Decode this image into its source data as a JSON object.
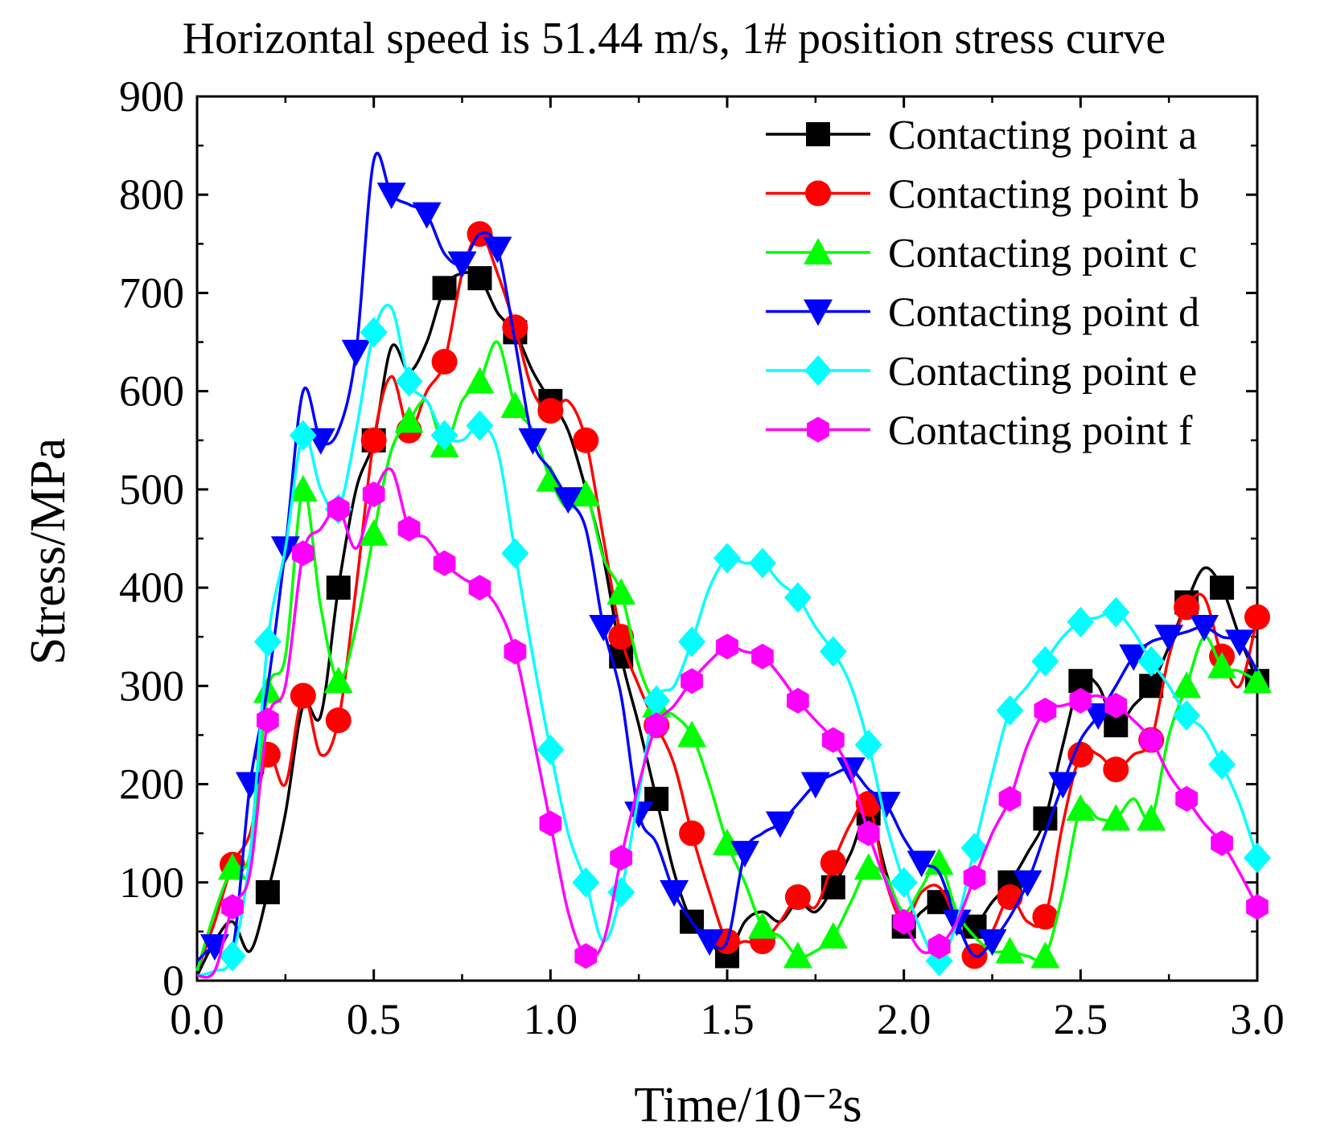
{
  "chart_data": {
    "type": "line",
    "title": "Horizontal speed is 51.44 m/s, 1# position stress curve",
    "xlabel": "Time/10⁻²s",
    "ylabel": "Stress/MPa",
    "xlim": [
      0,
      3.0
    ],
    "ylim": [
      0,
      900
    ],
    "xticks": [
      "0.0",
      "0.5",
      "1.0",
      "1.5",
      "2.0",
      "2.5",
      "3.0"
    ],
    "yticks": [
      "0",
      "100",
      "200",
      "300",
      "400",
      "500",
      "600",
      "700",
      "800",
      "900"
    ],
    "legend_position": "top-right",
    "series": [
      {
        "name": "Contacting point a",
        "color": "#000000",
        "marker": "square",
        "x": [
          0,
          0.05,
          0.1,
          0.15,
          0.2,
          0.25,
          0.3,
          0.35,
          0.4,
          0.45,
          0.5,
          0.55,
          0.6,
          0.65,
          0.7,
          0.75,
          0.8,
          0.85,
          0.9,
          0.95,
          1.0,
          1.05,
          1.1,
          1.15,
          1.2,
          1.25,
          1.3,
          1.35,
          1.4,
          1.45,
          1.5,
          1.55,
          1.6,
          1.65,
          1.7,
          1.75,
          1.8,
          1.85,
          1.9,
          1.95,
          2.0,
          2.05,
          2.1,
          2.15,
          2.2,
          2.25,
          2.3,
          2.35,
          2.4,
          2.45,
          2.5,
          2.55,
          2.6,
          2.65,
          2.7,
          2.75,
          2.8,
          2.85,
          2.9,
          2.95,
          3.0
        ],
        "y": [
          5,
          40,
          60,
          30,
          90,
          170,
          280,
          270,
          400,
          500,
          550,
          645,
          620,
          650,
          705,
          720,
          715,
          680,
          660,
          620,
          590,
          560,
          500,
          430,
          330,
          260,
          185,
          110,
          60,
          40,
          25,
          60,
          70,
          60,
          80,
          70,
          95,
          130,
          170,
          110,
          55,
          70,
          80,
          50,
          55,
          80,
          100,
          130,
          165,
          240,
          305,
          300,
          260,
          280,
          300,
          340,
          385,
          420,
          400,
          350,
          305
        ],
        "markers_x": [
          0.2,
          0.4,
          0.5,
          0.7,
          0.8,
          0.9,
          1.0,
          1.2,
          1.3,
          1.4,
          1.5,
          1.8,
          1.9,
          2.0,
          2.1,
          2.2,
          2.3,
          2.4,
          2.5,
          2.6,
          2.7,
          2.8,
          2.9,
          3.0
        ]
      },
      {
        "name": "Contacting point b",
        "color": "#ff0000",
        "marker": "circle",
        "x": [
          0,
          0.05,
          0.1,
          0.15,
          0.2,
          0.25,
          0.3,
          0.35,
          0.4,
          0.45,
          0.5,
          0.55,
          0.6,
          0.65,
          0.7,
          0.75,
          0.8,
          0.85,
          0.9,
          0.95,
          1.0,
          1.05,
          1.1,
          1.15,
          1.2,
          1.25,
          1.3,
          1.35,
          1.4,
          1.45,
          1.5,
          1.55,
          1.6,
          1.65,
          1.7,
          1.75,
          1.8,
          1.85,
          1.9,
          1.95,
          2.0,
          2.05,
          2.1,
          2.15,
          2.2,
          2.25,
          2.3,
          2.35,
          2.4,
          2.45,
          2.5,
          2.55,
          2.6,
          2.65,
          2.7,
          2.75,
          2.8,
          2.85,
          2.9,
          2.95,
          3.0
        ],
        "y": [
          10,
          60,
          118,
          150,
          230,
          200,
          290,
          230,
          265,
          400,
          550,
          615,
          560,
          600,
          630,
          720,
          760,
          720,
          665,
          600,
          580,
          590,
          550,
          450,
          350,
          300,
          260,
          220,
          150,
          90,
          40,
          40,
          40,
          60,
          85,
          75,
          120,
          160,
          180,
          100,
          60,
          90,
          95,
          60,
          25,
          50,
          85,
          60,
          65,
          160,
          230,
          230,
          215,
          230,
          245,
          330,
          380,
          390,
          330,
          300,
          370
        ],
        "markers_x": [
          0.1,
          0.2,
          0.3,
          0.4,
          0.5,
          0.6,
          0.7,
          0.8,
          0.9,
          1.0,
          1.1,
          1.2,
          1.3,
          1.4,
          1.5,
          1.6,
          1.7,
          1.8,
          1.9,
          2.2,
          2.3,
          2.4,
          2.5,
          2.6,
          2.7,
          2.8,
          2.9,
          3.0
        ]
      },
      {
        "name": "Contacting point c",
        "color": "#00ff00",
        "marker": "triangle-up",
        "x": [
          0,
          0.05,
          0.1,
          0.15,
          0.2,
          0.25,
          0.3,
          0.35,
          0.4,
          0.45,
          0.5,
          0.55,
          0.6,
          0.65,
          0.7,
          0.75,
          0.8,
          0.85,
          0.9,
          0.95,
          1.0,
          1.05,
          1.1,
          1.15,
          1.2,
          1.25,
          1.3,
          1.35,
          1.4,
          1.45,
          1.5,
          1.55,
          1.6,
          1.65,
          1.7,
          1.75,
          1.8,
          1.85,
          1.9,
          1.95,
          2.0,
          2.05,
          2.1,
          2.15,
          2.2,
          2.25,
          2.3,
          2.35,
          2.4,
          2.45,
          2.5,
          2.55,
          2.6,
          2.65,
          2.7,
          2.75,
          2.8,
          2.85,
          2.9,
          2.95,
          3.0
        ],
        "y": [
          10,
          70,
          115,
          130,
          295,
          330,
          500,
          380,
          305,
          360,
          455,
          540,
          570,
          590,
          545,
          590,
          610,
          650,
          585,
          560,
          510,
          480,
          495,
          430,
          395,
          320,
          280,
          270,
          250,
          200,
          140,
          100,
          55,
          45,
          25,
          30,
          45,
          80,
          115,
          105,
          70,
          95,
          120,
          70,
          45,
          30,
          30,
          25,
          25,
          90,
          175,
          165,
          165,
          185,
          165,
          250,
          300,
          350,
          320,
          315,
          305
        ],
        "markers_x": [
          0.1,
          0.2,
          0.3,
          0.4,
          0.5,
          0.6,
          0.7,
          0.8,
          0.9,
          1.0,
          1.1,
          1.2,
          1.3,
          1.4,
          1.5,
          1.6,
          1.7,
          1.8,
          1.9,
          2.1,
          2.3,
          2.4,
          2.5,
          2.6,
          2.7,
          2.8,
          2.9,
          3.0
        ]
      },
      {
        "name": "Contacting point d",
        "color": "#0000ff",
        "marker": "triangle-down",
        "x": [
          0,
          0.05,
          0.1,
          0.15,
          0.2,
          0.25,
          0.3,
          0.35,
          0.4,
          0.45,
          0.5,
          0.55,
          0.6,
          0.65,
          0.7,
          0.75,
          0.8,
          0.85,
          0.9,
          0.95,
          1.0,
          1.05,
          1.1,
          1.15,
          1.2,
          1.25,
          1.3,
          1.35,
          1.4,
          1.45,
          1.5,
          1.55,
          1.6,
          1.65,
          1.7,
          1.75,
          1.8,
          1.85,
          1.9,
          1.95,
          2.0,
          2.05,
          2.1,
          2.15,
          2.2,
          2.25,
          2.3,
          2.35,
          2.4,
          2.45,
          2.5,
          2.55,
          2.6,
          2.65,
          2.7,
          2.75,
          2.8,
          2.85,
          2.9,
          2.95,
          3.0
        ],
        "y": [
          20,
          35,
          30,
          200,
          300,
          440,
          600,
          550,
          560,
          640,
          835,
          800,
          790,
          780,
          740,
          730,
          760,
          745,
          650,
          550,
          520,
          490,
          460,
          360,
          290,
          170,
          140,
          90,
          60,
          40,
          40,
          130,
          150,
          160,
          180,
          200,
          210,
          215,
          195,
          180,
          145,
          120,
          110,
          60,
          25,
          40,
          65,
          100,
          150,
          200,
          245,
          270,
          300,
          330,
          345,
          350,
          355,
          360,
          350,
          345,
          315
        ],
        "markers_x": [
          0.05,
          0.15,
          0.25,
          0.35,
          0.45,
          0.55,
          0.65,
          0.75,
          0.85,
          0.95,
          1.05,
          1.15,
          1.25,
          1.35,
          1.45,
          1.55,
          1.65,
          1.75,
          1.85,
          1.95,
          2.05,
          2.15,
          2.25,
          2.35,
          2.45,
          2.55,
          2.65,
          2.75,
          2.85,
          2.95
        ]
      },
      {
        "name": "Contacting point e",
        "color": "#00ffff",
        "marker": "diamond",
        "x": [
          0,
          0.05,
          0.1,
          0.15,
          0.2,
          0.25,
          0.3,
          0.35,
          0.4,
          0.45,
          0.5,
          0.55,
          0.6,
          0.65,
          0.7,
          0.75,
          0.8,
          0.85,
          0.9,
          0.95,
          1.0,
          1.05,
          1.1,
          1.15,
          1.2,
          1.25,
          1.3,
          1.35,
          1.4,
          1.45,
          1.5,
          1.55,
          1.6,
          1.65,
          1.7,
          1.75,
          1.8,
          1.85,
          1.9,
          1.95,
          2.0,
          2.05,
          2.1,
          2.15,
          2.2,
          2.25,
          2.3,
          2.35,
          2.4,
          2.45,
          2.5,
          2.55,
          2.6,
          2.65,
          2.7,
          2.75,
          2.8,
          2.85,
          2.9,
          2.95,
          3.0
        ],
        "y": [
          5,
          10,
          25,
          130,
          345,
          440,
          555,
          500,
          480,
          560,
          660,
          685,
          610,
          590,
          555,
          550,
          565,
          540,
          435,
          330,
          235,
          150,
          100,
          40,
          90,
          190,
          285,
          300,
          345,
          400,
          430,
          425,
          425,
          405,
          390,
          360,
          335,
          300,
          240,
          160,
          100,
          50,
          20,
          60,
          135,
          210,
          275,
          300,
          325,
          350,
          365,
          370,
          375,
          355,
          325,
          300,
          270,
          255,
          220,
          180,
          125
        ],
        "markers_x": [
          0.1,
          0.2,
          0.3,
          0.4,
          0.5,
          0.6,
          0.7,
          0.8,
          0.9,
          1.0,
          1.1,
          1.2,
          1.3,
          1.4,
          1.5,
          1.6,
          1.7,
          1.8,
          1.9,
          2.0,
          2.1,
          2.2,
          2.3,
          2.4,
          2.5,
          2.6,
          2.7,
          2.8,
          2.9,
          3.0
        ]
      },
      {
        "name": "Contacting point f",
        "color": "#ff00ff",
        "marker": "hexagon",
        "x": [
          0,
          0.05,
          0.1,
          0.15,
          0.2,
          0.25,
          0.3,
          0.35,
          0.4,
          0.45,
          0.5,
          0.55,
          0.6,
          0.65,
          0.7,
          0.75,
          0.8,
          0.85,
          0.9,
          0.95,
          1.0,
          1.05,
          1.1,
          1.15,
          1.2,
          1.25,
          1.3,
          1.35,
          1.4,
          1.45,
          1.5,
          1.55,
          1.6,
          1.65,
          1.7,
          1.75,
          1.8,
          1.85,
          1.9,
          1.95,
          2.0,
          2.05,
          2.1,
          2.15,
          2.2,
          2.25,
          2.3,
          2.35,
          2.4,
          2.45,
          2.5,
          2.55,
          2.6,
          2.65,
          2.7,
          2.75,
          2.8,
          2.85,
          2.9,
          2.95,
          3.0
        ],
        "y": [
          5,
          10,
          75,
          110,
          265,
          300,
          435,
          460,
          480,
          440,
          495,
          520,
          460,
          450,
          425,
          410,
          400,
          380,
          335,
          250,
          160,
          70,
          25,
          40,
          125,
          200,
          260,
          280,
          305,
          325,
          340,
          335,
          330,
          310,
          285,
          265,
          245,
          210,
          150,
          100,
          60,
          30,
          35,
          60,
          105,
          150,
          185,
          240,
          275,
          280,
          285,
          290,
          280,
          265,
          245,
          210,
          185,
          160,
          140,
          110,
          75
        ],
        "markers_x": [
          0.1,
          0.2,
          0.3,
          0.4,
          0.5,
          0.6,
          0.7,
          0.8,
          0.9,
          1.0,
          1.1,
          1.2,
          1.3,
          1.4,
          1.5,
          1.6,
          1.7,
          1.8,
          1.9,
          2.0,
          2.1,
          2.2,
          2.3,
          2.4,
          2.5,
          2.6,
          2.7,
          2.8,
          2.9,
          3.0
        ]
      }
    ]
  }
}
